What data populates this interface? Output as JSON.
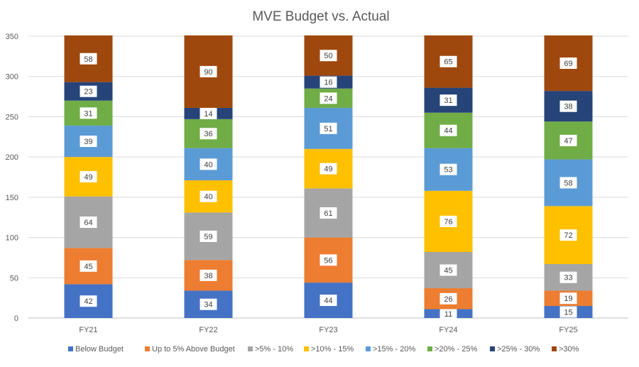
{
  "chart_data": {
    "type": "bar",
    "stacked": true,
    "title": "MVE Budget vs. Actual",
    "xlabel": "",
    "ylabel": "",
    "ylim": [
      0,
      350
    ],
    "yticks": [
      0,
      50,
      100,
      150,
      200,
      250,
      300,
      350
    ],
    "grid": true,
    "legend": "bottom",
    "categories": [
      "FY21",
      "FY22",
      "FY23",
      "FY24",
      "FY25"
    ],
    "series": [
      {
        "name": "Below Budget",
        "color": "#4472C4",
        "values": [
          42,
          34,
          44,
          11,
          15
        ]
      },
      {
        "name": "Up to 5% Above Budget",
        "color": "#ED7D31",
        "values": [
          45,
          38,
          56,
          26,
          19
        ]
      },
      {
        "name": ">5% - 10%",
        "color": "#A5A5A5",
        "values": [
          64,
          59,
          61,
          45,
          33
        ]
      },
      {
        "name": ">10% - 15%",
        "color": "#FFC000",
        "values": [
          49,
          40,
          49,
          76,
          72
        ]
      },
      {
        "name": ">15% - 20%",
        "color": "#5B9BD5",
        "values": [
          39,
          40,
          51,
          53,
          58
        ]
      },
      {
        "name": ">20% - 25%",
        "color": "#70AD47",
        "values": [
          31,
          36,
          24,
          44,
          47
        ]
      },
      {
        "name": ">25% - 30%",
        "color": "#264478",
        "values": [
          23,
          14,
          16,
          31,
          38
        ]
      },
      {
        "name": ">30%",
        "color": "#9E480E",
        "values": [
          58,
          90,
          50,
          65,
          69
        ]
      }
    ]
  }
}
